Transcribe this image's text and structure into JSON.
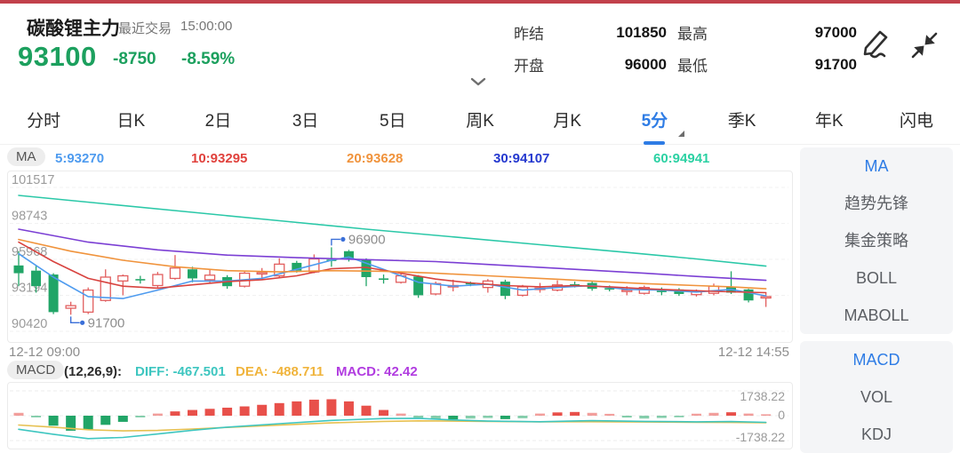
{
  "colors": {
    "accent_red_bar": "#c2414b",
    "price_green": "#1ca05e",
    "active_blue": "#2e7ce5",
    "up_red": "#e25e5e",
    "down_green": "#21a567"
  },
  "header": {
    "title": "碳酸锂主力",
    "last_trade_label": "最近交易",
    "last_trade_time": "15:00:00",
    "price": "93100",
    "change": "-8750",
    "change_pct": "-8.59%",
    "stats": [
      {
        "label": "昨结",
        "value": "101850"
      },
      {
        "label": "最高",
        "value": "97000"
      },
      {
        "label": "开盘",
        "value": "96000"
      },
      {
        "label": "最低",
        "value": "91700"
      }
    ]
  },
  "tabs": [
    "分时",
    "日K",
    "2日",
    "3日",
    "5日",
    "周K",
    "月K",
    "5分",
    "季K",
    "年K",
    "闪电"
  ],
  "active_tab_index": 7,
  "ma_row": {
    "badge": "MA",
    "items": [
      {
        "text": "5:93270",
        "color": "#4e9bef"
      },
      {
        "text": "10:93295",
        "color": "#e0413c"
      },
      {
        "text": "20:93628",
        "color": "#f0933c"
      },
      {
        "text": "30:94107",
        "color": "#2438cf"
      },
      {
        "text": "60:94941",
        "color": "#2bd1a3"
      }
    ]
  },
  "macd_row": {
    "badge": "MACD",
    "params": "(12,26,9):",
    "items": [
      {
        "text": "DIFF: -467.501",
        "color": "#3ec6c0"
      },
      {
        "text": "DEA: -488.711",
        "color": "#f0b43c"
      },
      {
        "text": "MACD: 42.42",
        "color": "#b13ce0"
      }
    ]
  },
  "sidebar": {
    "groups": [
      {
        "items": [
          {
            "label": "MA",
            "active": true
          },
          {
            "label": "趋势先锋",
            "active": false
          },
          {
            "label": "集金策略",
            "active": false
          },
          {
            "label": "BOLL",
            "active": false
          },
          {
            "label": "MABOLL",
            "active": false
          }
        ]
      },
      {
        "items": [
          {
            "label": "MACD",
            "active": true
          },
          {
            "label": "VOL",
            "active": false
          },
          {
            "label": "KDJ",
            "active": false
          }
        ]
      }
    ]
  },
  "chart_data": [
    {
      "type": "candlestick",
      "title": "碳酸锂主力 5分K线",
      "x_left_label": "12-12 09:00",
      "x_right_label": "12-12 14:55",
      "ylim": [
        90420,
        101517
      ],
      "y_ticks": [
        101517,
        98743,
        95968,
        93194,
        90420
      ],
      "up_color": "#e25e5e",
      "down_color": "#21a567",
      "candles": [
        [
          95500,
          96600,
          93900,
          94900
        ],
        [
          95100,
          95500,
          93400,
          93900
        ],
        [
          94800,
          94900,
          91750,
          91900
        ],
        [
          92200,
          92700,
          91700,
          92400
        ],
        [
          91900,
          93800,
          91750,
          93600
        ],
        [
          92800,
          95200,
          92700,
          94600
        ],
        [
          94300,
          94800,
          93200,
          94700
        ],
        [
          94450,
          94700,
          94100,
          94400
        ],
        [
          93950,
          95000,
          93800,
          94800
        ],
        [
          94500,
          96300,
          94400,
          95300
        ],
        [
          95200,
          95400,
          94200,
          94500
        ],
        [
          94400,
          95200,
          94100,
          94750
        ],
        [
          94600,
          94750,
          93700,
          93900
        ],
        [
          93900,
          95050,
          93800,
          94900
        ],
        [
          94850,
          95300,
          94400,
          94950
        ],
        [
          94700,
          96050,
          94500,
          95600
        ],
        [
          95700,
          95850,
          94950,
          95100
        ],
        [
          95000,
          96350,
          94900,
          96000
        ],
        [
          95950,
          96900,
          95400,
          95900
        ],
        [
          96600,
          96700,
          95800,
          96000
        ],
        [
          95950,
          96050,
          93900,
          94600
        ],
        [
          94500,
          94800,
          94100,
          94400
        ],
        [
          94200,
          94900,
          94100,
          94700
        ],
        [
          94650,
          94750,
          93000,
          93200
        ],
        [
          93300,
          94250,
          93200,
          94100
        ],
        [
          93900,
          94400,
          93500,
          93950
        ],
        [
          94150,
          94250,
          93900,
          94050
        ],
        [
          93800,
          94450,
          93400,
          94300
        ],
        [
          94250,
          94400,
          92900,
          93150
        ],
        [
          93200,
          94000,
          93100,
          93850
        ],
        [
          93700,
          94150,
          93400,
          93750
        ],
        [
          93600,
          94350,
          93500,
          94000
        ],
        [
          94050,
          94250,
          93800,
          94000
        ],
        [
          94150,
          94300,
          93550,
          93700
        ],
        [
          93750,
          93950,
          93500,
          93650
        ],
        [
          93550,
          93900,
          93200,
          93600
        ],
        [
          93350,
          93950,
          93250,
          93800
        ],
        [
          93550,
          93800,
          93200,
          93500
        ],
        [
          93650,
          93750,
          93150,
          93300
        ],
        [
          93250,
          93650,
          93100,
          93500
        ],
        [
          93350,
          94100,
          93200,
          93900
        ],
        [
          93850,
          95050,
          93300,
          93400
        ],
        [
          93650,
          93700,
          92650,
          92800
        ],
        [
          93000,
          93400,
          92300,
          93100
        ]
      ],
      "ma_series": [
        {
          "name": "MA5",
          "color": "#4e9bef",
          "points": [
            [
              0,
              96400
            ],
            [
              2,
              94600
            ],
            [
              4,
              93100
            ],
            [
              6,
              92950
            ],
            [
              8,
              93600
            ],
            [
              10,
              94300
            ],
            [
              12,
              94300
            ],
            [
              14,
              94500
            ],
            [
              16,
              95200
            ],
            [
              18,
              95900
            ],
            [
              19,
              96150
            ],
            [
              21,
              95200
            ],
            [
              23,
              94200
            ],
            [
              25,
              93900
            ],
            [
              27,
              94050
            ],
            [
              29,
              93600
            ],
            [
              31,
              93800
            ],
            [
              33,
              93950
            ],
            [
              35,
              93650
            ],
            [
              37,
              93600
            ],
            [
              39,
              93450
            ],
            [
              41,
              93650
            ],
            [
              43,
              93150
            ]
          ]
        },
        {
          "name": "MA10",
          "color": "#d8433f",
          "points": [
            [
              0,
              97300
            ],
            [
              2,
              95800
            ],
            [
              4,
              94500
            ],
            [
              6,
              93900
            ],
            [
              8,
              93750
            ],
            [
              10,
              94000
            ],
            [
              12,
              94250
            ],
            [
              14,
              94400
            ],
            [
              16,
              94700
            ],
            [
              18,
              95250
            ],
            [
              20,
              95350
            ],
            [
              22,
              94900
            ],
            [
              24,
              94450
            ],
            [
              26,
              94150
            ],
            [
              28,
              93950
            ],
            [
              30,
              93850
            ],
            [
              32,
              93950
            ],
            [
              34,
              93850
            ],
            [
              36,
              93700
            ],
            [
              38,
              93600
            ],
            [
              40,
              93500
            ],
            [
              43,
              93400
            ]
          ]
        },
        {
          "name": "MA20",
          "color": "#f0933c",
          "points": [
            [
              0,
              97500
            ],
            [
              3,
              96600
            ],
            [
              6,
              95900
            ],
            [
              9,
              95400
            ],
            [
              12,
              95100
            ],
            [
              15,
              95000
            ],
            [
              18,
              95100
            ],
            [
              21,
              95050
            ],
            [
              24,
              94900
            ],
            [
              27,
              94700
            ],
            [
              30,
              94500
            ],
            [
              33,
              94300
            ],
            [
              36,
              94100
            ],
            [
              39,
              93950
            ],
            [
              41,
              93850
            ],
            [
              43,
              93700
            ]
          ]
        },
        {
          "name": "MA30",
          "color": "#7b3fd4",
          "points": [
            [
              0,
              98300
            ],
            [
              4,
              97300
            ],
            [
              8,
              96700
            ],
            [
              12,
              96300
            ],
            [
              16,
              96100
            ],
            [
              20,
              95950
            ],
            [
              24,
              95800
            ],
            [
              28,
              95500
            ],
            [
              32,
              95200
            ],
            [
              36,
              94900
            ],
            [
              39,
              94650
            ],
            [
              43,
              94350
            ]
          ]
        },
        {
          "name": "MA60",
          "color": "#2bc8a8",
          "points": [
            [
              0,
              100900
            ],
            [
              5,
              100250
            ],
            [
              10,
              99600
            ],
            [
              15,
              98950
            ],
            [
              20,
              98300
            ],
            [
              25,
              97700
            ],
            [
              30,
              97100
            ],
            [
              35,
              96500
            ],
            [
              39,
              96000
            ],
            [
              43,
              95450
            ]
          ]
        }
      ],
      "annotations": [
        {
          "bar": 3,
          "price": 91700,
          "label": "91700",
          "side": "below"
        },
        {
          "bar": 18,
          "price": 96900,
          "label": "96900",
          "side": "above"
        }
      ]
    },
    {
      "type": "macd",
      "params": "(12,26,9)",
      "ylim": [
        -1738.22,
        1738.22
      ],
      "y_ticks": [
        1738.22,
        0,
        -1738.22
      ],
      "diff_value": -467.501,
      "dea_value": -488.711,
      "macd_value": 42.42,
      "histogram": [
        200,
        -120,
        -700,
        -1050,
        -980,
        -640,
        -430,
        -120,
        150,
        300,
        400,
        480,
        560,
        650,
        760,
        880,
        1000,
        1120,
        1150,
        1000,
        700,
        400,
        150,
        -150,
        -220,
        -260,
        -200,
        -160,
        -240,
        -180,
        150,
        230,
        260,
        200,
        130,
        -130,
        -200,
        -160,
        -110,
        140,
        200,
        240,
        150,
        42
      ],
      "diff_line": {
        "name": "DIFF",
        "color": "#3ec6c0",
        "points": [
          [
            0,
            -950
          ],
          [
            2,
            -1300
          ],
          [
            4,
            -1600
          ],
          [
            6,
            -1520
          ],
          [
            8,
            -1280
          ],
          [
            10,
            -1020
          ],
          [
            12,
            -800
          ],
          [
            15,
            -560
          ],
          [
            18,
            -330
          ],
          [
            21,
            -200
          ],
          [
            23,
            -180
          ],
          [
            25,
            -300
          ],
          [
            27,
            -380
          ],
          [
            30,
            -420
          ],
          [
            33,
            -350
          ],
          [
            36,
            -400
          ],
          [
            39,
            -430
          ],
          [
            41,
            -410
          ],
          [
            43,
            -467.5
          ]
        ]
      },
      "dea_line": {
        "name": "DEA",
        "color": "#e6c050",
        "points": [
          [
            0,
            -650
          ],
          [
            2,
            -800
          ],
          [
            4,
            -980
          ],
          [
            6,
            -1060
          ],
          [
            8,
            -1030
          ],
          [
            10,
            -930
          ],
          [
            12,
            -820
          ],
          [
            15,
            -660
          ],
          [
            18,
            -500
          ],
          [
            21,
            -400
          ],
          [
            23,
            -360
          ],
          [
            25,
            -380
          ],
          [
            27,
            -400
          ],
          [
            30,
            -430
          ],
          [
            33,
            -420
          ],
          [
            36,
            -440
          ],
          [
            39,
            -460
          ],
          [
            41,
            -470
          ],
          [
            43,
            -488.7
          ]
        ]
      }
    }
  ]
}
